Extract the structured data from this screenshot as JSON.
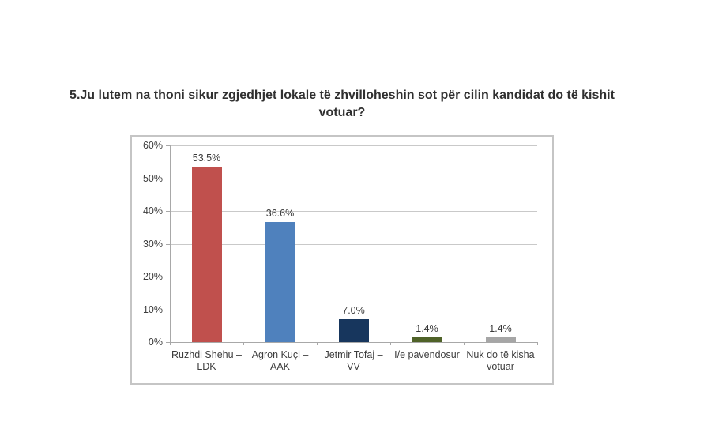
{
  "title": {
    "text": "5.Ju lutem na thoni sikur zgjedhjet lokale të zhvilloheshin sot për cilin kandidat do të kishit votuar?"
  },
  "chart_data": {
    "type": "bar",
    "title": "",
    "xlabel": "",
    "ylabel": "",
    "categories": [
      "Ruzhdi Shehu – LDK",
      "Agron Kuçi – AAK",
      "Jetmir Tofaj – VV",
      "I/e pavendosur",
      "Nuk do të kisha votuar"
    ],
    "values": [
      53.5,
      36.6,
      7.0,
      1.4,
      1.4
    ],
    "data_labels": [
      "53.5%",
      "36.6%",
      "7.0%",
      "1.4%",
      "1.4%"
    ],
    "bar_colors": [
      "#c0504d",
      "#4f81bd",
      "#17365d",
      "#4f6228",
      "#a6a6a6"
    ],
    "ylim": [
      0,
      60
    ],
    "ytick_step": 10,
    "ytick_labels": [
      "0%",
      "10%",
      "20%",
      "30%",
      "40%",
      "50%",
      "60%"
    ],
    "grid": true,
    "legend": false,
    "colors": {
      "gridline": "#c9c9c9",
      "axis": "#a8a8a8",
      "text": "#3d3d3d",
      "background": "#ffffff",
      "frame_border": "#c5c5c5"
    }
  }
}
